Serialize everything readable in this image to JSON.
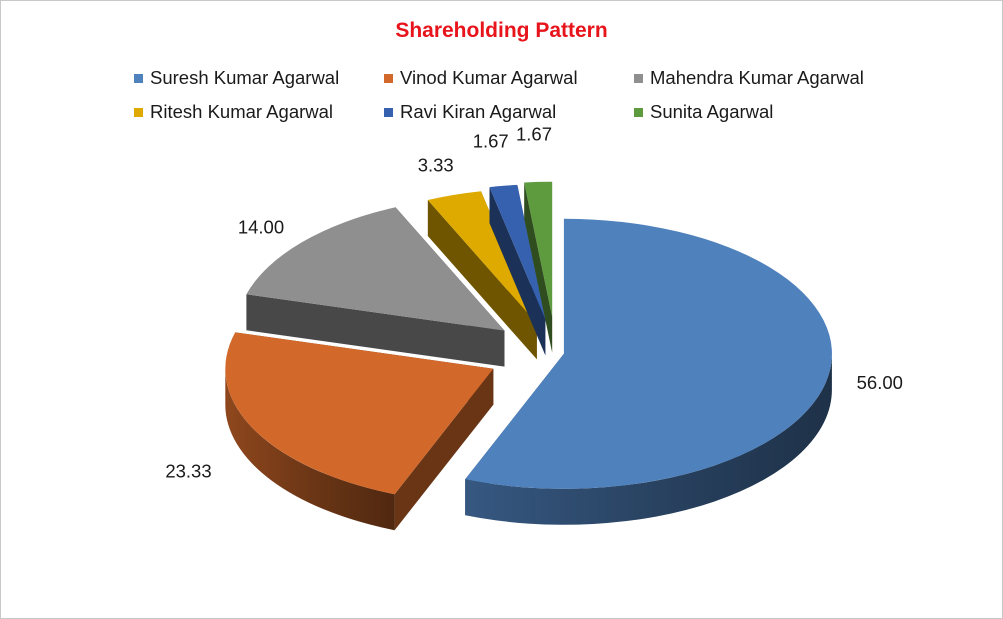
{
  "chart_data": {
    "type": "pie",
    "title": "Shareholding Pattern",
    "categories": [
      "Suresh Kumar Agarwal",
      "Vinod Kumar Agarwal",
      "Mahendra Kumar Agarwal",
      "Ritesh Kumar Agarwal",
      "Ravi Kiran Agarwal",
      "Sunita Agarwal"
    ],
    "values": [
      56.0,
      23.33,
      14.0,
      3.33,
      1.67,
      1.67
    ],
    "data_labels": [
      "56.00",
      "23.33",
      "14.00",
      "3.33",
      "1.67",
      "1.67"
    ],
    "colors": [
      "#4f81bd",
      "#d2692a",
      "#8f8f8f",
      "#deaa00",
      "#3561ae",
      "#5e9a3e"
    ],
    "legend_position": "top",
    "style": "3d-exploded"
  }
}
